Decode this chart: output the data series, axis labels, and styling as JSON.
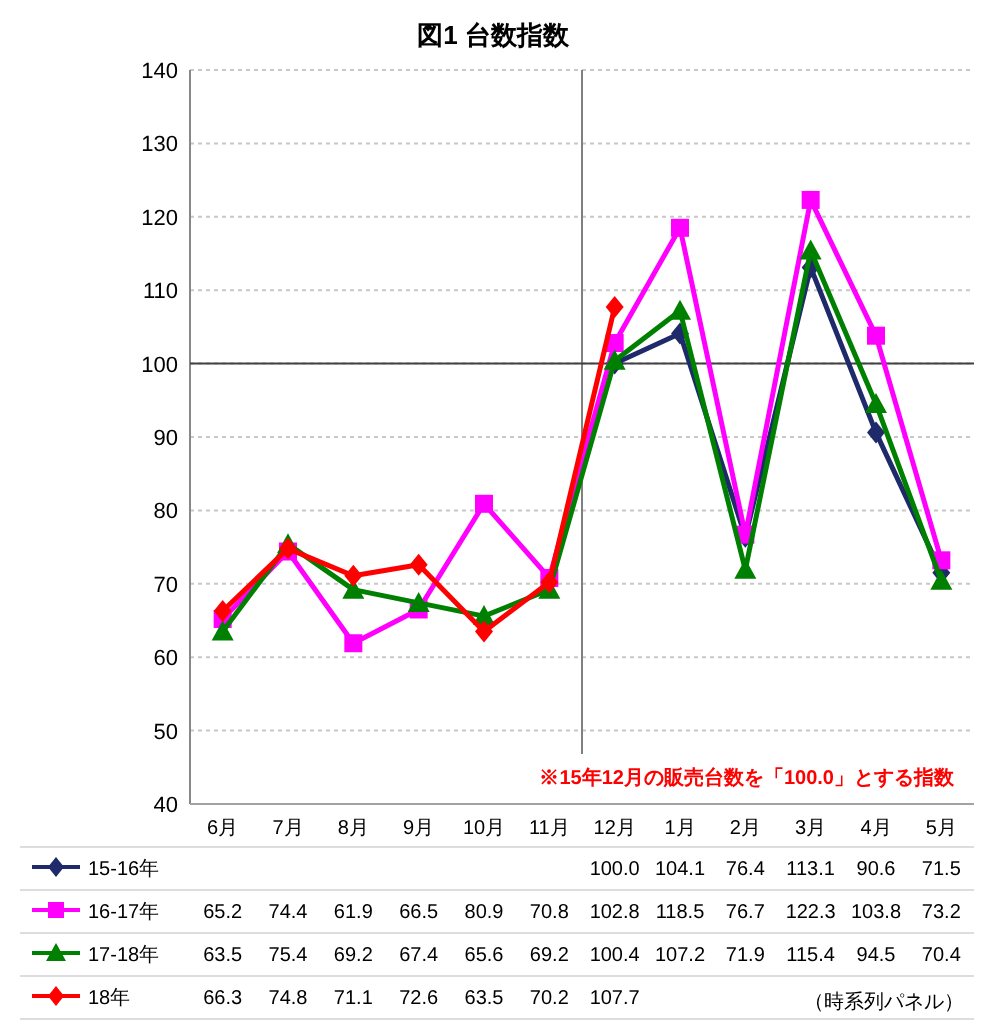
{
  "chart_data": {
    "type": "line",
    "title": "図1 台数指数",
    "categories": [
      "6月",
      "7月",
      "8月",
      "9月",
      "10月",
      "11月",
      "12月",
      "1月",
      "2月",
      "3月",
      "4月",
      "5月"
    ],
    "series": [
      {
        "name": "15-16年",
        "color": "#1f2a6b",
        "marker": "diamond",
        "values": [
          null,
          null,
          null,
          null,
          null,
          null,
          100.0,
          104.1,
          76.4,
          113.1,
          90.6,
          71.5
        ],
        "value_labels": [
          null,
          null,
          null,
          null,
          null,
          null,
          "100.0",
          "104.1",
          "76.4",
          "113.1",
          "90.6",
          "71.5"
        ]
      },
      {
        "name": "16-17年",
        "color": "#ff00ff",
        "marker": "square",
        "values": [
          65.2,
          74.4,
          61.9,
          66.5,
          80.9,
          70.8,
          102.8,
          118.5,
          76.7,
          122.3,
          103.8,
          73.2
        ],
        "value_labels": [
          "65.2",
          "74.4",
          "61.9",
          "66.5",
          "80.9",
          "70.8",
          "102.8",
          "118.5",
          "76.7",
          "122.3",
          "103.8",
          "73.2"
        ]
      },
      {
        "name": "17-18年",
        "color": "#008000",
        "marker": "triangle",
        "values": [
          63.5,
          75.4,
          69.2,
          67.4,
          65.6,
          69.2,
          100.4,
          107.2,
          71.9,
          115.4,
          94.5,
          70.4
        ],
        "value_labels": [
          "63.5",
          "75.4",
          "69.2",
          "67.4",
          "65.6",
          "69.2",
          "100.4",
          "107.2",
          "71.9",
          "115.4",
          "94.5",
          "70.4"
        ]
      },
      {
        "name": "18年",
        "color": "#ff0000",
        "marker": "diamond",
        "values": [
          66.3,
          74.8,
          71.1,
          72.6,
          63.5,
          70.2,
          107.7,
          null,
          null,
          null,
          null,
          null
        ],
        "value_labels": [
          "66.3",
          "74.8",
          "71.1",
          "72.6",
          "63.5",
          "70.2",
          "107.7",
          null,
          null,
          null,
          null,
          null
        ]
      }
    ],
    "ylim": [
      40,
      140
    ],
    "yticks": [
      40,
      50,
      60,
      70,
      80,
      90,
      100,
      110,
      120,
      130,
      140
    ],
    "grid": "y",
    "legend": "bottom",
    "ref_lines": [
      {
        "axis": "x",
        "value": "12月",
        "color": "#808080"
      },
      {
        "axis": "y",
        "value": 100,
        "color": "#404040"
      }
    ],
    "annotations": [
      "※15年12月の販売台数を「100.0」とする指数",
      "（時系列パネル）"
    ]
  }
}
